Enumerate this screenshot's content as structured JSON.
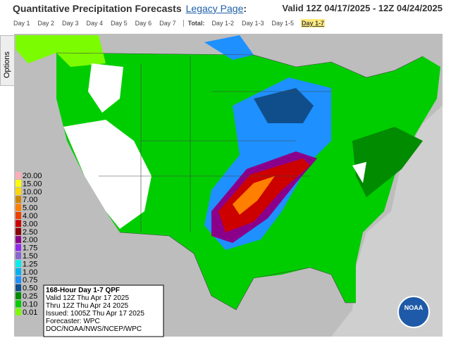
{
  "header": {
    "title": "Quantitative Precipitation Forecasts",
    "link": "Legacy Page",
    "colon": ":",
    "valid": "Valid 12Z 04/17/2025 - 12Z 04/24/2025"
  },
  "tabs": {
    "days": [
      "Day 1",
      "Day 2",
      "Day 3",
      "Day 4",
      "Day 5",
      "Day 6",
      "Day 7"
    ],
    "total_label": "Total:",
    "totals": [
      "Day 1-2",
      "Day 1-3",
      "Day 1-5",
      "Day 1-7"
    ],
    "selected": "Day 1-7"
  },
  "sidebar": {
    "label": "Options"
  },
  "legend": {
    "items": [
      {
        "label": "20.00",
        "color": "#ffaeb9"
      },
      {
        "label": "15.00",
        "color": "#ffff00"
      },
      {
        "label": "10.00",
        "color": "#ffd700"
      },
      {
        "label": "7.00",
        "color": "#cd8500"
      },
      {
        "label": "5.00",
        "color": "#ff7f00"
      },
      {
        "label": "4.00",
        "color": "#ee4000"
      },
      {
        "label": "3.00",
        "color": "#cd0000"
      },
      {
        "label": "2.50",
        "color": "#8b0000"
      },
      {
        "label": "2.00",
        "color": "#8b008b"
      },
      {
        "label": "1.75",
        "color": "#912cee"
      },
      {
        "label": "1.50",
        "color": "#8968cd"
      },
      {
        "label": "1.25",
        "color": "#00eeee"
      },
      {
        "label": "1.00",
        "color": "#00b2ee"
      },
      {
        "label": "0.75",
        "color": "#1e90ff"
      },
      {
        "label": "0.50",
        "color": "#104e8b"
      },
      {
        "label": "0.25",
        "color": "#008b00"
      },
      {
        "label": "0.10",
        "color": "#00cd00"
      },
      {
        "label": "0.01",
        "color": "#7cfc00"
      }
    ]
  },
  "info": {
    "lines": [
      "168-Hour Day 1-7 QPF",
      "Valid 12Z Thu Apr 17 2025",
      "Thru 12Z Thu Apr 24 2025",
      "Issued: 1005Z Thu Apr 17 2025",
      "Forecaster: WPC",
      "DOC/NOAA/NWS/NCEP/WPC"
    ]
  },
  "logo": {
    "text": "NOAA"
  }
}
